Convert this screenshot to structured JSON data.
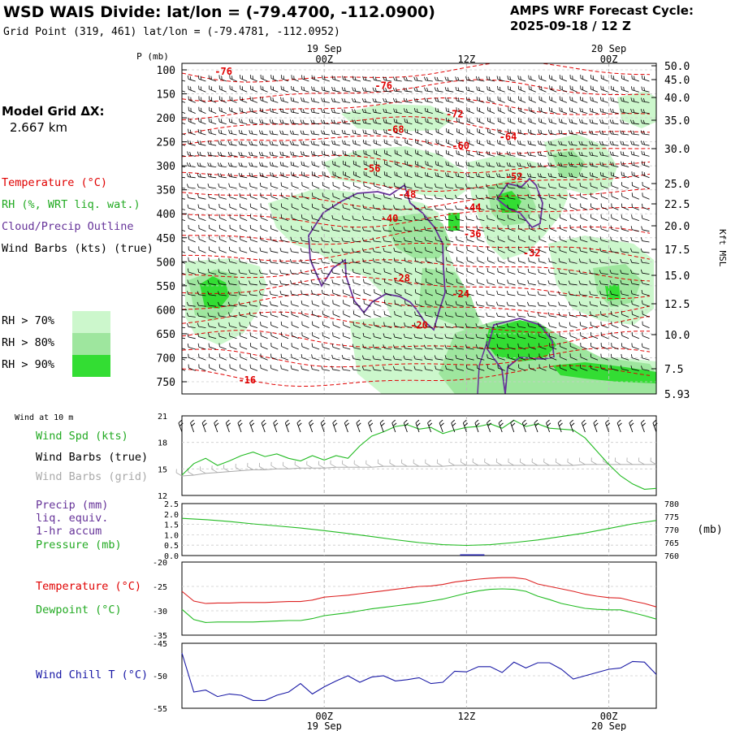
{
  "header": {
    "title": "WSD WAIS Divide:  lat/lon = (-79.4700, -112.0900)",
    "grid_point": "Grid Point (319, 461) lat/lon = (-79.4781, -112.0952)",
    "cycle_line1": "AMPS WRF Forecast Cycle:",
    "cycle_line2": "2025-09-18 / 12  Z"
  },
  "model_grid": {
    "line1": "Model Grid ΔX:",
    "line2": "2.667 km"
  },
  "legend_top": {
    "temperature": "Temperature (°C)",
    "rh": "RH (%, WRT liq. wat.)",
    "cloud": "Cloud/Precip Outline",
    "wind": "Wind Barbs (kts) (true)",
    "rh70": "RH > 70%",
    "rh80": "RH > 80%",
    "rh90": "RH > 90%"
  },
  "colors": {
    "temperature": "#e00000",
    "rh70": "#ccf7cc",
    "rh80": "#9ee69e",
    "rh90": "#33dd33",
    "cloud": "#663399",
    "green_line": "#22bb22",
    "blue_line": "#1a1aa6",
    "grey_barb": "#aaaaaa"
  },
  "time_axis": {
    "top_dates": [
      "19 Sep",
      "20 Sep"
    ],
    "ticks": [
      "00Z",
      "12Z",
      "00Z"
    ],
    "bottom_dates": [
      "19 Sep",
      "20 Sep"
    ]
  },
  "chart_data": [
    {
      "type": "heatmap",
      "name": "cross-section",
      "y_title": "P (mb)",
      "y_ticks_pressure": [
        "100",
        "150",
        "200",
        "250",
        "300",
        "350",
        "400",
        "450",
        "500",
        "550",
        "600",
        "650",
        "700",
        "750"
      ],
      "right_ticks_kft": [
        "50.0",
        "45.0",
        "40.0",
        "35.0",
        "30.0",
        "25.0",
        "22.5",
        "20.0",
        "17.5",
        "15.0",
        "12.5",
        "10.0",
        "7.5",
        "5.93"
      ],
      "right_title": "Kft MSL",
      "temp_labels": [
        {
          "t": "-76",
          "h": -8.5,
          "p": 103
        },
        {
          "t": "-76",
          "h": 5,
          "p": 133
        },
        {
          "t": "-72",
          "h": 11,
          "p": 192
        },
        {
          "t": "-68",
          "h": 6,
          "p": 224
        },
        {
          "t": "-64",
          "h": 15.5,
          "p": 240
        },
        {
          "t": "-60",
          "h": 11.5,
          "p": 258
        },
        {
          "t": "-56",
          "h": 4,
          "p": 306
        },
        {
          "t": "-52",
          "h": 16,
          "p": 323
        },
        {
          "t": "-48",
          "h": 7,
          "p": 360
        },
        {
          "t": "-44",
          "h": 12.5,
          "p": 387
        },
        {
          "t": "-40",
          "h": 5.5,
          "p": 410
        },
        {
          "t": "-36",
          "h": 12.5,
          "p": 442
        },
        {
          "t": "-32",
          "h": 17.5,
          "p": 482
        },
        {
          "t": "-28",
          "h": 6.5,
          "p": 534
        },
        {
          "t": "-24",
          "h": 11.5,
          "p": 567
        },
        {
          "t": "-20",
          "h": 8,
          "p": 632
        },
        {
          "t": "-16",
          "h": -6.5,
          "p": 747
        }
      ]
    },
    {
      "type": "line",
      "name": "wind-10m",
      "panel_title": "Wind at 10 m",
      "legend": [
        "Wind Spd (kts)",
        "Wind Barbs (true)",
        "Wind Barbs (grid)"
      ],
      "ylim": [
        12,
        21
      ],
      "y_ticks": [
        "21",
        "18",
        "15",
        "12"
      ],
      "x_hours": [
        -12,
        -11,
        -10,
        -9,
        -8,
        -7,
        -6,
        -5,
        -4,
        -3,
        -2,
        -1,
        0,
        1,
        2,
        3,
        4,
        5,
        6,
        7,
        8,
        9,
        10,
        11,
        12,
        13,
        14,
        15,
        16,
        17,
        18,
        19,
        20,
        21,
        22,
        23,
        24,
        25,
        26,
        27,
        28
      ],
      "wind_speed": [
        14.3,
        15.6,
        16.2,
        15.4,
        15.9,
        16.5,
        16.9,
        16.4,
        16.7,
        16.2,
        15.9,
        16.5,
        16.0,
        16.5,
        16.2,
        17.6,
        18.7,
        19.2,
        19.8,
        20.0,
        19.5,
        19.7,
        19.0,
        19.4,
        19.7,
        19.8,
        20.1,
        19.6,
        20.5,
        19.8,
        20.1,
        19.6,
        19.5,
        19.4,
        18.5,
        17.0,
        15.5,
        14.2,
        13.3,
        12.7,
        12.8
      ],
      "grid_barb_speed": [
        14.2,
        14.3,
        14.5,
        14.6,
        14.7,
        14.8,
        14.9,
        14.9,
        15.0,
        15.0,
        15.1,
        15.1,
        15.1,
        15.2,
        15.2,
        15.2,
        15.2,
        15.3,
        15.3,
        15.3,
        15.3,
        15.3,
        15.3,
        15.4,
        15.4,
        15.4,
        15.4,
        15.4,
        15.4,
        15.4,
        15.4,
        15.4,
        15.4,
        15.4,
        15.5,
        15.5,
        15.5,
        15.5,
        15.5,
        15.5,
        15.5
      ]
    },
    {
      "type": "line",
      "name": "precip-pressure",
      "legend": [
        "Precip (mm)",
        "liq. equiv.",
        "1-hr accum",
        "Pressure (mb)"
      ],
      "precip_ylim": [
        0,
        2.5
      ],
      "precip_ticks": [
        "2.5",
        "2.0",
        "1.5",
        "1.0",
        "0.5",
        "0.0"
      ],
      "pressure_ylim": [
        760,
        780
      ],
      "pressure_ticks": [
        "780",
        "775",
        "770",
        "765",
        "760"
      ],
      "pressure_unit": "(mb)",
      "x_hours": [
        -12,
        -10,
        -8,
        -6,
        -4,
        -2,
        0,
        2,
        4,
        6,
        8,
        10,
        12,
        14,
        16,
        18,
        20,
        22,
        24,
        26,
        28
      ],
      "pressure": [
        774.3,
        773.8,
        773.1,
        772.2,
        771.4,
        770.6,
        769.6,
        768.5,
        767.3,
        766.1,
        765.0,
        764.2,
        763.9,
        764.2,
        765.0,
        766.0,
        767.3,
        768.7,
        770.4,
        772.2,
        773.5
      ],
      "precip_hours": [
        12
      ],
      "precip": [
        0.02
      ]
    },
    {
      "type": "line",
      "name": "temperature-dewpoint",
      "legend": [
        "Temperature (°C)",
        "Dewpoint (°C)"
      ],
      "ylim": [
        -35,
        -20
      ],
      "y_ticks": [
        "-20",
        "-25",
        "-30",
        "-35"
      ],
      "x_hours": [
        -12,
        -11,
        -10,
        -9,
        -8,
        -7,
        -6,
        -5,
        -4,
        -3,
        -2,
        -1,
        0,
        1,
        2,
        3,
        4,
        5,
        6,
        7,
        8,
        9,
        10,
        11,
        12,
        13,
        14,
        15,
        16,
        17,
        18,
        19,
        20,
        21,
        22,
        23,
        24,
        25,
        26,
        27,
        28
      ],
      "temperature": [
        -26.0,
        -28.0,
        -28.5,
        -28.4,
        -28.4,
        -28.3,
        -28.3,
        -28.3,
        -28.2,
        -28.1,
        -28.1,
        -27.8,
        -27.2,
        -27.0,
        -26.8,
        -26.5,
        -26.2,
        -25.9,
        -25.6,
        -25.3,
        -25.0,
        -24.9,
        -24.6,
        -24.1,
        -23.8,
        -23.5,
        -23.3,
        -23.2,
        -23.2,
        -23.5,
        -24.5,
        -25.0,
        -25.5,
        -26.0,
        -26.6,
        -27.0,
        -27.3,
        -27.4,
        -28.0,
        -28.5,
        -29.2
      ],
      "dewpoint": [
        -29.7,
        -31.8,
        -32.4,
        -32.3,
        -32.3,
        -32.3,
        -32.3,
        -32.2,
        -32.1,
        -32.0,
        -32.0,
        -31.6,
        -31.0,
        -30.7,
        -30.4,
        -30.0,
        -29.6,
        -29.3,
        -29.0,
        -28.7,
        -28.4,
        -28.0,
        -27.6,
        -27.0,
        -26.4,
        -25.9,
        -25.6,
        -25.5,
        -25.6,
        -26.0,
        -27.0,
        -27.7,
        -28.5,
        -29.0,
        -29.5,
        -29.7,
        -29.8,
        -29.8,
        -30.4,
        -31.0,
        -31.7
      ]
    },
    {
      "type": "line",
      "name": "wind-chill",
      "legend": [
        "Wind Chill T (°C)"
      ],
      "ylim": [
        -55,
        -45
      ],
      "y_ticks": [
        "-45",
        "-50",
        "-55"
      ],
      "x_hours": [
        -12,
        -11,
        -10,
        -9,
        -8,
        -7,
        -6,
        -5,
        -4,
        -3,
        -2,
        -1,
        0,
        1,
        2,
        3,
        4,
        5,
        6,
        7,
        8,
        9,
        10,
        11,
        12,
        13,
        14,
        15,
        16,
        17,
        18,
        19,
        20,
        21,
        22,
        23,
        24,
        25,
        26,
        27,
        28
      ],
      "wind_chill": [
        -46.5,
        -52.5,
        -52.2,
        -53.2,
        -52.8,
        -53.0,
        -53.8,
        -53.8,
        -53.0,
        -52.5,
        -51.2,
        -52.8,
        -51.7,
        -50.8,
        -50.0,
        -51.0,
        -50.2,
        -50.0,
        -50.8,
        -50.6,
        -50.3,
        -51.2,
        -51.0,
        -49.3,
        -49.4,
        -48.6,
        -48.6,
        -49.5,
        -47.9,
        -48.8,
        -48.0,
        -48.0,
        -49.0,
        -50.5,
        -50.0,
        -49.5,
        -49.0,
        -48.8,
        -47.8,
        -47.9,
        -49.8
      ]
    }
  ]
}
